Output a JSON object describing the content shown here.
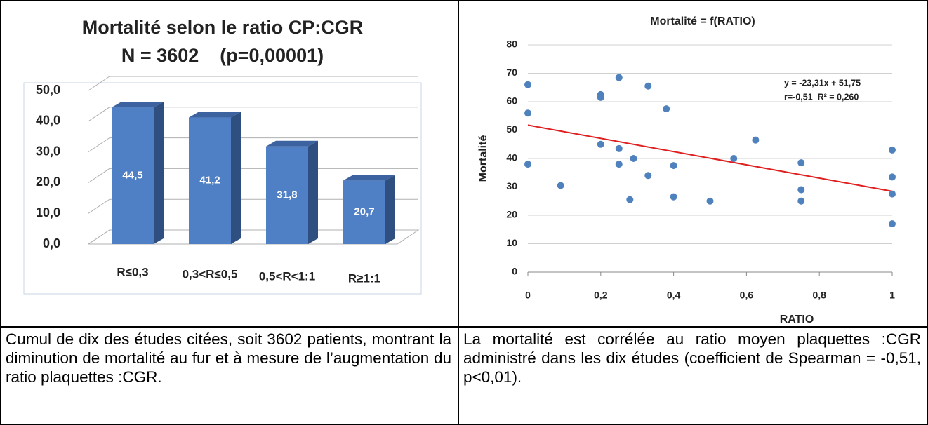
{
  "chart_data": [
    {
      "type": "bar3d",
      "title": "Mortalité selon le ratio CP:CGR",
      "subtitle": "N = 3602    (p=0,00001)",
      "categories": [
        "R≤0,3",
        "0,3<R≤0,5",
        "0,5<R<1:1",
        "R≥1:1"
      ],
      "values": [
        44.5,
        41.2,
        31.8,
        20.7
      ],
      "value_labels": [
        "44,5",
        "41,2",
        "31,8",
        "20,7"
      ],
      "color": "#4f7fc4",
      "ylim": [
        0,
        50
      ],
      "yticks": [
        {
          "value": 0,
          "label": "0,0"
        },
        {
          "value": 10,
          "label": "10,0"
        },
        {
          "value": 20,
          "label": "20,0"
        },
        {
          "value": 30,
          "label": "30,0"
        },
        {
          "value": 40,
          "label": "40,0"
        },
        {
          "value": 50,
          "label": "50,0"
        }
      ],
      "grid": true
    },
    {
      "type": "scatter",
      "title": "Mortalité = f(RATIO)",
      "x_label": "RATIO",
      "y_label": "Mortalité",
      "annotations": [
        "y = -23,31x + 51,75",
        "r=-0,51  R² = 0,260"
      ],
      "x": [
        0,
        0,
        0,
        0.09,
        0.2,
        0.2,
        0.2,
        0.25,
        0.25,
        0.25,
        0.28,
        0.29,
        0.33,
        0.33,
        0.38,
        0.4,
        0.4,
        0.5,
        0.565,
        0.625,
        0.75,
        0.75,
        0.75,
        1,
        1,
        1,
        1
      ],
      "values": [
        66,
        56,
        38,
        30.5,
        62.5,
        61.5,
        45,
        68.5,
        43.5,
        38,
        25.5,
        40,
        65.5,
        34,
        57.5,
        37.5,
        26.5,
        25,
        40,
        46.5,
        38.5,
        29,
        25,
        43,
        33.5,
        27.5,
        17
      ],
      "color": "#4f81bd",
      "trendline": {
        "slope": -23.31,
        "intercept": 51.75,
        "color": "#e02020"
      },
      "xlim": [
        0,
        1
      ],
      "xticks": [
        0,
        {
          "value": 0.2,
          "label": "0,2"
        },
        {
          "value": 0.4,
          "label": "0,4"
        },
        {
          "value": 0.6,
          "label": "0,6"
        },
        {
          "value": 0.8,
          "label": "0,8"
        },
        1
      ],
      "ylim": [
        0,
        80
      ],
      "yticks": [
        0,
        10,
        20,
        30,
        40,
        50,
        60,
        70,
        80
      ],
      "grid": true
    }
  ],
  "captions": [
    "Cumul de dix des études citées, soit 3602 patients, montrant la diminution de mortalité au fur et à mesure de l’augmentation du ratio plaquettes :CGR.",
    "La mortalité est corrélée au ratio moyen plaquettes :CGR administré dans les dix études (coefficient de Spearman = -0,51, p<0,01)."
  ]
}
